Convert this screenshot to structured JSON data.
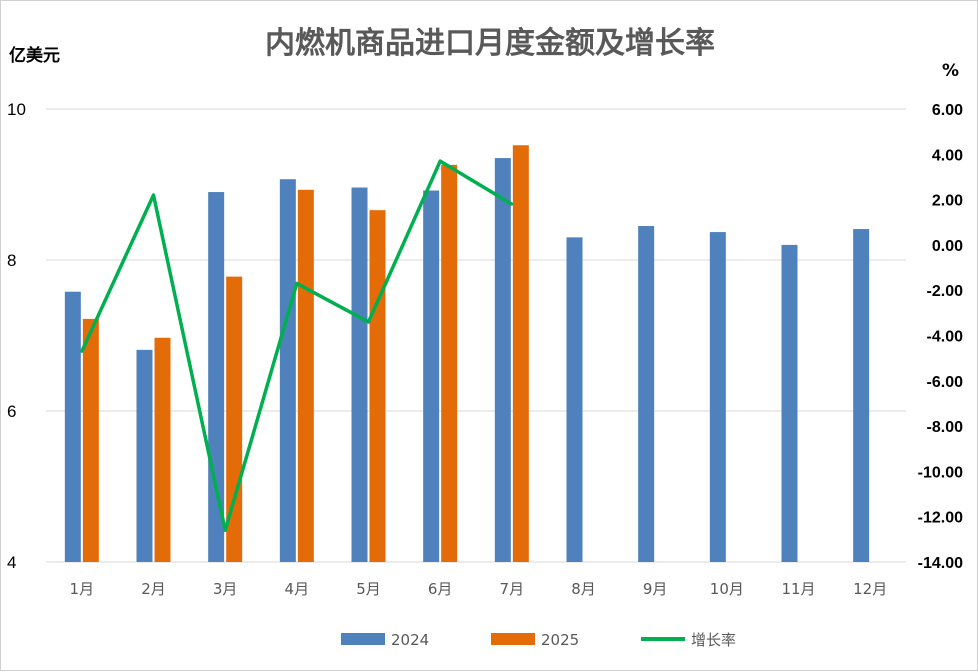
{
  "chart_data": {
    "type": "bar",
    "title": "内燃机商品进口月度金额及增长率",
    "y_unit": "亿美元",
    "y2_unit": "%",
    "categories": [
      "1月",
      "2月",
      "3月",
      "4月",
      "5月",
      "6月",
      "7月",
      "8月",
      "9月",
      "10月",
      "11月",
      "12月"
    ],
    "series": [
      {
        "name": "2024",
        "type": "bar",
        "axis": "left",
        "color": "#4f81bd",
        "values": [
          7.58,
          6.81,
          8.9,
          9.07,
          8.96,
          8.92,
          9.35,
          8.3,
          8.45,
          8.37,
          8.2,
          8.41
        ]
      },
      {
        "name": "2025",
        "type": "bar",
        "axis": "left",
        "color": "#e36c09",
        "values": [
          7.22,
          6.97,
          7.78,
          8.93,
          8.66,
          9.26,
          9.52,
          null,
          null,
          null,
          null,
          null
        ]
      },
      {
        "name": "增长率",
        "type": "line",
        "axis": "right",
        "color": "#00b050",
        "values": [
          -4.7,
          2.2,
          -12.6,
          -1.7,
          -3.4,
          3.7,
          1.8,
          null,
          null,
          null,
          null,
          null
        ]
      }
    ],
    "ylim": [
      4,
      10
    ],
    "yticks": [
      "4",
      "6",
      "8",
      "10"
    ],
    "y2lim": [
      -14,
      6
    ],
    "y2ticks": [
      "-14.00",
      "-12.00",
      "-10.00",
      "-8.00",
      "-6.00",
      "-4.00",
      "-2.00",
      "0.00",
      "2.00",
      "4.00",
      "6.00"
    ],
    "grid": true,
    "legend": "bottom"
  }
}
